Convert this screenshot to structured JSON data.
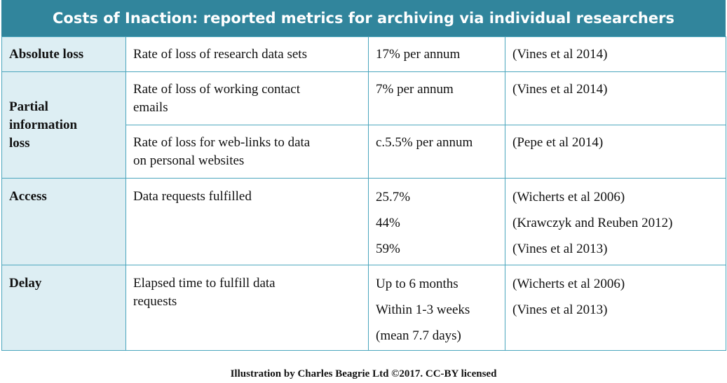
{
  "title": "Costs of Inaction: reported metrics for archiving via individual researchers",
  "rows": {
    "absolute": {
      "category": "Absolute loss",
      "metric": "Rate of loss  of research data sets",
      "value": "17% per annum",
      "source": "(Vines et al 2014)"
    },
    "partial": {
      "category_lines": [
        "Partial",
        "information",
        "loss"
      ],
      "r1": {
        "metric_lines": [
          "Rate of loss of working contact",
          "emails"
        ],
        "value": "7% per annum",
        "source": "(Vines et al 2014)"
      },
      "r2": {
        "metric_lines": [
          "Rate of loss for web-links to data",
          "on personal websites"
        ],
        "value": "c.5.5% per annum",
        "source": "(Pepe et al 2014)"
      }
    },
    "access": {
      "category": "Access",
      "metric": "Data requests fulfilled",
      "values": [
        "25.7%",
        "44%",
        "59%"
      ],
      "sources": [
        "(Wicherts et al 2006)",
        "(Krawczyk and Reuben 2012)",
        "(Vines et al 2013)"
      ]
    },
    "delay": {
      "category": "Delay",
      "metric_lines": [
        "Elapsed  time to fulfill data",
        "requests"
      ],
      "values": [
        "Up to 6 months",
        "Within 1-3 weeks",
        "(mean 7.7 days)"
      ],
      "sources": [
        "(Wicherts et al 2006)",
        "(Vines et al 2013)"
      ]
    }
  },
  "footer": "Illustration by Charles Beagrie Ltd ©2017. CC-BY licensed",
  "colors": {
    "title_bg": "#31859c",
    "category_bg": "#ddeef3",
    "border": "#4ba6bd"
  }
}
